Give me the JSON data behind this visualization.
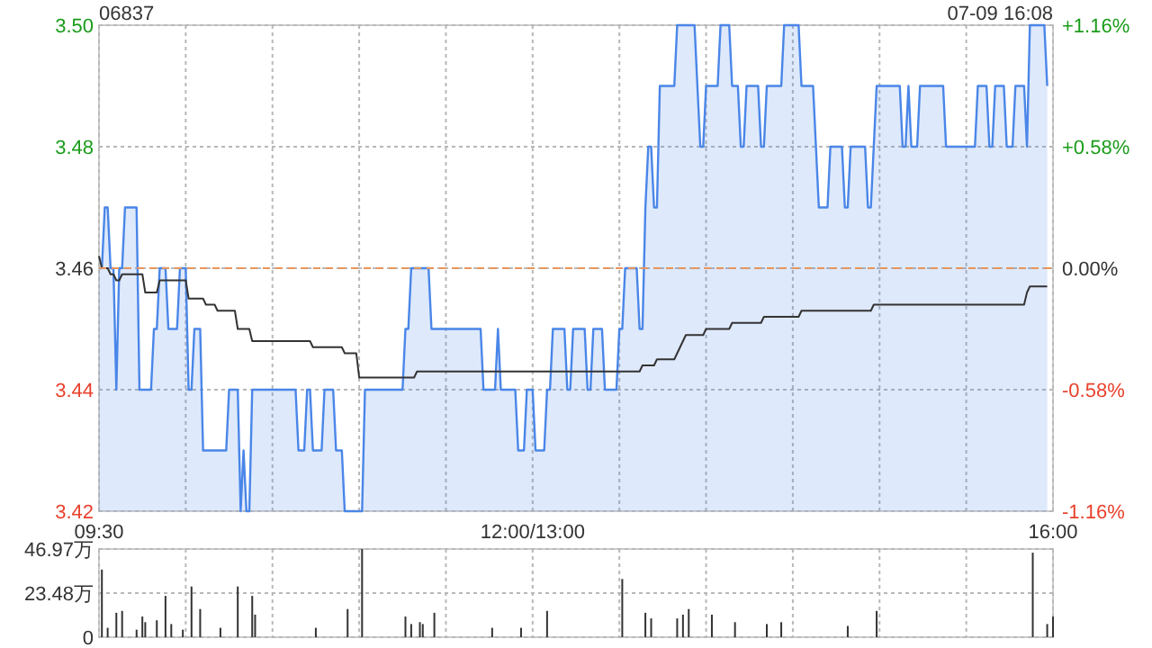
{
  "chart_data": [
    {
      "type": "line",
      "title": "06837",
      "subtitle": "07-09 16:08",
      "grid": true,
      "categories": [
        "09:30",
        null,
        null,
        null,
        null,
        null,
        null,
        null,
        null,
        null,
        null,
        null,
        null,
        null,
        null,
        null,
        null,
        null,
        null,
        null,
        null,
        null,
        null,
        null,
        null,
        null,
        null,
        null,
        null,
        null,
        null,
        null,
        null,
        null,
        null,
        null,
        null,
        null,
        null,
        null,
        null,
        null,
        null,
        null,
        null,
        null,
        null,
        null,
        null,
        null,
        null,
        null,
        null,
        null,
        null,
        null,
        null,
        null,
        null,
        null,
        null,
        null,
        null,
        null,
        null,
        null,
        null,
        null,
        null,
        null,
        null,
        null,
        null,
        null,
        null,
        null,
        null,
        null,
        null,
        null,
        null,
        null,
        null,
        null,
        null,
        null,
        null,
        null,
        null,
        null,
        null,
        null,
        null,
        null,
        null,
        null,
        null,
        null,
        null,
        null,
        null,
        null,
        null,
        null,
        null,
        null,
        null,
        null,
        null,
        null,
        null,
        null,
        null,
        null,
        null,
        null,
        null,
        null,
        null,
        null,
        null,
        null,
        null,
        null,
        null,
        null,
        null,
        null,
        null,
        null,
        null,
        null,
        null,
        null,
        null,
        null,
        null,
        null,
        null,
        null,
        null,
        null,
        null,
        null,
        null,
        null,
        null,
        null,
        null,
        null,
        "12:00/13:00",
        null,
        null,
        null,
        null,
        null,
        null,
        null,
        null,
        null,
        null,
        null,
        null,
        null,
        null,
        null,
        null,
        null,
        null,
        null,
        null,
        null,
        null,
        null,
        null,
        null,
        null,
        null,
        null,
        null,
        null,
        null,
        null,
        null,
        null,
        null,
        null,
        null,
        null,
        null,
        null,
        null,
        null,
        null,
        null,
        null,
        null,
        null,
        null,
        null,
        null,
        null,
        null,
        null,
        null,
        null,
        null,
        null,
        null,
        null,
        null,
        null,
        null,
        null,
        null,
        null,
        null,
        null,
        null,
        null,
        null,
        null,
        null,
        null,
        null,
        null,
        null,
        null,
        null,
        null,
        null,
        null,
        null,
        null,
        null,
        null,
        null,
        null,
        null,
        null,
        null,
        null,
        null,
        null,
        null,
        null,
        null,
        null,
        null,
        null,
        null,
        null,
        null,
        null,
        null,
        null,
        null,
        null,
        null,
        null,
        null,
        null,
        null,
        null,
        null,
        null,
        null,
        null,
        null,
        null,
        null,
        null,
        null,
        null,
        null,
        null,
        null,
        null,
        null,
        null,
        null,
        null,
        null,
        null,
        null,
        null,
        null,
        null,
        null,
        null,
        null,
        null,
        null,
        null,
        null,
        null,
        null,
        null,
        null,
        null,
        null,
        null,
        null,
        null,
        null,
        null,
        null,
        null,
        null,
        null,
        null,
        null,
        null,
        null,
        null,
        null,
        null,
        null,
        null,
        null,
        null,
        null,
        null,
        null,
        null,
        null,
        null,
        null,
        null,
        null,
        "16:00"
      ],
      "ylim": [
        3.42,
        3.5
      ],
      "yticks": [
        {
          "value": 3.42,
          "label": "3.42"
        },
        {
          "value": 3.44,
          "label": "3.44"
        },
        {
          "value": 3.46,
          "label": "3.46"
        },
        {
          "value": 3.48,
          "label": "3.48"
        },
        {
          "value": 3.5,
          "label": "3.50"
        }
      ],
      "y2lim": [
        -1.16,
        1.16
      ],
      "y2ticks": [
        {
          "value": -1.16,
          "label": "-1.16%"
        },
        {
          "value": -0.58,
          "label": "-0.58%"
        },
        {
          "value": 0,
          "label": "0.00%"
        },
        {
          "value": 0.58,
          "label": "+0.58%"
        },
        {
          "value": 1.16,
          "label": "+1.16%"
        }
      ],
      "ref_lines": [
        {
          "axis": "y",
          "value": 3.46,
          "color": "#e8955a",
          "line_style": "dashed"
        }
      ],
      "series": [
        {
          "type": "area",
          "color": "#4a86e8",
          "values": [
            3.46,
            3.46,
            3.47,
            3.47,
            3.46,
            3.46,
            3.44,
            3.46,
            3.46,
            3.47,
            3.47,
            3.47,
            3.47,
            3.47,
            3.44,
            3.44,
            3.44,
            3.44,
            3.44,
            3.45,
            3.45,
            3.46,
            3.46,
            3.46,
            3.45,
            3.45,
            3.45,
            3.45,
            3.46,
            3.46,
            3.46,
            3.44,
            3.44,
            3.45,
            3.45,
            3.45,
            3.43,
            3.43,
            3.43,
            3.43,
            3.43,
            3.43,
            3.43,
            3.43,
            3.43,
            3.44,
            3.44,
            3.44,
            3.44,
            3.42,
            3.43,
            3.42,
            3.42,
            3.44,
            3.44,
            3.44,
            3.44,
            3.44,
            3.44,
            3.44,
            3.44,
            3.44,
            3.44,
            3.44,
            3.44,
            3.44,
            3.44,
            3.44,
            3.44,
            3.43,
            3.43,
            3.43,
            3.44,
            3.44,
            3.43,
            3.43,
            3.43,
            3.43,
            3.44,
            3.44,
            3.44,
            3.44,
            3.43,
            3.43,
            3.43,
            3.42,
            3.42,
            3.42,
            3.42,
            3.42,
            3.42,
            3.42,
            3.44,
            3.44,
            3.44,
            3.44,
            3.44,
            3.44,
            3.44,
            3.44,
            3.44,
            3.44,
            3.44,
            3.44,
            3.44,
            3.44,
            3.45,
            3.45,
            3.46,
            3.46,
            3.46,
            3.46,
            3.46,
            3.46,
            3.46,
            3.45,
            3.45,
            3.45,
            3.45,
            3.45,
            3.45,
            3.45,
            3.45,
            3.45,
            3.45,
            3.45,
            3.45,
            3.45,
            3.45,
            3.45,
            3.45,
            3.45,
            3.45,
            3.44,
            3.44,
            3.44,
            3.44,
            3.44,
            3.45,
            3.44,
            3.44,
            3.44,
            3.44,
            3.44,
            3.44,
            3.43,
            3.43,
            3.43,
            3.44,
            3.44,
            3.44,
            3.43,
            3.43,
            3.43,
            3.43,
            3.44,
            3.44,
            3.45,
            3.45,
            3.45,
            3.45,
            3.45,
            3.44,
            3.44,
            3.45,
            3.45,
            3.45,
            3.45,
            3.45,
            3.44,
            3.44,
            3.45,
            3.45,
            3.45,
            3.45,
            3.44,
            3.44,
            3.44,
            3.44,
            3.44,
            3.45,
            3.45,
            3.46,
            3.46,
            3.46,
            3.46,
            3.46,
            3.45,
            3.45,
            3.47,
            3.48,
            3.48,
            3.47,
            3.47,
            3.49,
            3.49,
            3.49,
            3.49,
            3.49,
            3.49,
            3.5,
            3.5,
            3.5,
            3.5,
            3.5,
            3.5,
            3.5,
            3.49,
            3.48,
            3.48,
            3.49,
            3.49,
            3.49,
            3.49,
            3.49,
            3.5,
            3.5,
            3.5,
            3.5,
            3.49,
            3.49,
            3.49,
            3.48,
            3.48,
            3.49,
            3.49,
            3.49,
            3.49,
            3.49,
            3.48,
            3.48,
            3.49,
            3.49,
            3.49,
            3.49,
            3.49,
            3.49,
            3.5,
            3.5,
            3.5,
            3.5,
            3.5,
            3.5,
            3.49,
            3.49,
            3.49,
            3.49,
            3.49,
            3.48,
            3.47,
            3.47,
            3.47,
            3.47,
            3.48,
            3.48,
            3.48,
            3.48,
            3.48,
            3.47,
            3.47,
            3.48,
            3.48,
            3.48,
            3.48,
            3.48,
            3.48,
            3.47,
            3.47,
            3.48,
            3.49,
            3.49,
            3.49,
            3.49,
            3.49,
            3.49,
            3.49,
            3.49,
            3.49,
            3.48,
            3.48,
            3.49,
            3.48,
            3.48,
            3.48,
            3.49,
            3.49,
            3.49,
            3.49,
            3.49,
            3.49,
            3.49,
            3.49,
            3.49,
            3.48,
            3.48,
            3.48,
            3.48,
            3.48,
            3.48,
            3.48,
            3.48,
            3.48,
            3.48,
            3.48,
            3.49,
            3.49,
            3.49,
            3.49,
            3.48,
            3.48,
            3.49,
            3.49,
            3.49,
            3.49,
            3.48,
            3.48,
            3.48,
            3.49,
            3.49,
            3.49,
            3.49,
            3.48,
            3.5,
            3.5,
            3.5,
            3.5,
            3.5,
            3.5,
            3.49,
            null,
            null
          ]
        },
        {
          "type": "line",
          "color": "#333333",
          "values": [
            3.462,
            3.46,
            3.46,
            3.46,
            3.459,
            3.459,
            3.458,
            3.458,
            3.459,
            3.459,
            3.459,
            3.459,
            3.459,
            3.459,
            3.459,
            3.459,
            3.456,
            3.456,
            3.456,
            3.456,
            3.456,
            3.458,
            3.458,
            3.458,
            3.458,
            3.458,
            3.458,
            3.458,
            3.458,
            3.458,
            3.458,
            3.455,
            3.455,
            3.455,
            3.455,
            3.455,
            3.455,
            3.454,
            3.454,
            3.454,
            3.454,
            3.453,
            3.453,
            3.453,
            3.453,
            3.453,
            3.453,
            3.453,
            3.45,
            3.45,
            3.45,
            3.45,
            3.45,
            3.448,
            3.448,
            3.448,
            3.448,
            3.448,
            3.448,
            3.448,
            3.448,
            3.448,
            3.448,
            3.448,
            3.448,
            3.448,
            3.448,
            3.448,
            3.448,
            3.448,
            3.448,
            3.448,
            3.448,
            3.448,
            3.447,
            3.447,
            3.447,
            3.447,
            3.447,
            3.447,
            3.447,
            3.447,
            3.447,
            3.447,
            3.447,
            3.446,
            3.446,
            3.446,
            3.446,
            3.446,
            3.442,
            3.442,
            3.442,
            3.442,
            3.442,
            3.442,
            3.442,
            3.442,
            3.442,
            3.442,
            3.442,
            3.442,
            3.442,
            3.442,
            3.442,
            3.442,
            3.442,
            3.442,
            3.442,
            3.442,
            3.443,
            3.443,
            3.443,
            3.443,
            3.443,
            3.443,
            3.443,
            3.443,
            3.443,
            3.443,
            3.443,
            3.443,
            3.443,
            3.443,
            3.443,
            3.443,
            3.443,
            3.443,
            3.443,
            3.443,
            3.443,
            3.443,
            3.443,
            3.443,
            3.443,
            3.443,
            3.443,
            3.443,
            3.443,
            3.443,
            3.443,
            3.443,
            3.443,
            3.443,
            3.443,
            3.443,
            3.443,
            3.443,
            3.443,
            3.443,
            3.443,
            3.443,
            3.443,
            3.443,
            3.443,
            3.443,
            3.443,
            3.443,
            3.443,
            3.443,
            3.443,
            3.443,
            3.443,
            3.443,
            3.443,
            3.443,
            3.443,
            3.443,
            3.443,
            3.443,
            3.443,
            3.443,
            3.443,
            3.443,
            3.443,
            3.443,
            3.443,
            3.443,
            3.443,
            3.443,
            3.443,
            3.443,
            3.443,
            3.443,
            3.443,
            3.443,
            3.443,
            3.443,
            3.444,
            3.444,
            3.444,
            3.444,
            3.444,
            3.445,
            3.445,
            3.445,
            3.445,
            3.445,
            3.445,
            3.445,
            3.446,
            3.447,
            3.448,
            3.449,
            3.449,
            3.449,
            3.449,
            3.449,
            3.449,
            3.449,
            3.45,
            3.45,
            3.45,
            3.45,
            3.45,
            3.45,
            3.45,
            3.45,
            3.45,
            3.451,
            3.451,
            3.451,
            3.451,
            3.451,
            3.451,
            3.451,
            3.451,
            3.451,
            3.451,
            3.451,
            3.452,
            3.452,
            3.452,
            3.452,
            3.452,
            3.452,
            3.452,
            3.452,
            3.452,
            3.452,
            3.452,
            3.452,
            3.452,
            3.453,
            3.453,
            3.453,
            3.453,
            3.453,
            3.453,
            3.453,
            3.453,
            3.453,
            3.453,
            3.453,
            3.453,
            3.453,
            3.453,
            3.453,
            3.453,
            3.453,
            3.453,
            3.453,
            3.453,
            3.453,
            3.453,
            3.453,
            3.453,
            3.453,
            3.454,
            3.454,
            3.454,
            3.454,
            3.454,
            3.454,
            3.454,
            3.454,
            3.454,
            3.454,
            3.454,
            3.454,
            3.454,
            3.454,
            3.454,
            3.454,
            3.454,
            3.454,
            3.454,
            3.454,
            3.454,
            3.454,
            3.454,
            3.454,
            3.454,
            3.454,
            3.454,
            3.454,
            3.454,
            3.454,
            3.454,
            3.454,
            3.454,
            3.454,
            3.454,
            3.454,
            3.454,
            3.454,
            3.454,
            3.454,
            3.454,
            3.454,
            3.454,
            3.454,
            3.454,
            3.454,
            3.454,
            3.454,
            3.454,
            3.454,
            3.454,
            3.454,
            3.454,
            3.456,
            3.457,
            3.457,
            3.457,
            3.457,
            3.457,
            3.457,
            3.457,
            null,
            null
          ]
        }
      ]
    },
    {
      "type": "bar",
      "grid": true,
      "tick_labels": "y",
      "color": "#333333",
      "categories": [
        null,
        null,
        null,
        null,
        null,
        null,
        null,
        null,
        null,
        null,
        null,
        null,
        null,
        null,
        null,
        null,
        null,
        null,
        null,
        null,
        null,
        null,
        null,
        null,
        null,
        null,
        null,
        null,
        null,
        null,
        null,
        null,
        null,
        null,
        null,
        null,
        null,
        null,
        null,
        null,
        null,
        null,
        null,
        null,
        null,
        null,
        null,
        null,
        null,
        null,
        null,
        null,
        null,
        null,
        null,
        null,
        null,
        null,
        null,
        null,
        null,
        null,
        null,
        null,
        null,
        null,
        null,
        null,
        null,
        null,
        null,
        null,
        null,
        null,
        null,
        null,
        null,
        null,
        null,
        null,
        null,
        null,
        null,
        null,
        null,
        null,
        null,
        null,
        null,
        null,
        null,
        null,
        null,
        null,
        null,
        null,
        null,
        null,
        null,
        null,
        null,
        null,
        null,
        null,
        null,
        null,
        null,
        null,
        null,
        null,
        null,
        null,
        null,
        null,
        null,
        null,
        null,
        null,
        null,
        null,
        null,
        null,
        null,
        null,
        null,
        null,
        null,
        null,
        null,
        null,
        null,
        null,
        null,
        null,
        null,
        null,
        null,
        null,
        null,
        null,
        null,
        null,
        null,
        null,
        null,
        null,
        null,
        null,
        null,
        null,
        null,
        null,
        null,
        null,
        null,
        null,
        null,
        null,
        null,
        null,
        null,
        null,
        null,
        null,
        null,
        null,
        null,
        null,
        null,
        null,
        null,
        null,
        null,
        null,
        null,
        null,
        null,
        null,
        null,
        null,
        null,
        null,
        null,
        null,
        null,
        null,
        null,
        null,
        null,
        null,
        null,
        null,
        null,
        null,
        null,
        null,
        null,
        null,
        null,
        null,
        null,
        null,
        null,
        null,
        null,
        null,
        null,
        null,
        null,
        null,
        null,
        null,
        null,
        null,
        null,
        null,
        null,
        null,
        null,
        null,
        null,
        null,
        null,
        null,
        null,
        null,
        null,
        null,
        null,
        null,
        null,
        null,
        null,
        null,
        null,
        null,
        null,
        null,
        null,
        null,
        null,
        null,
        null,
        null,
        null,
        null,
        null,
        null,
        null,
        null,
        null,
        null,
        null,
        null,
        null,
        null,
        null,
        null,
        null,
        null,
        null,
        null,
        null,
        null,
        null,
        null,
        null,
        null,
        null,
        null,
        null,
        null,
        null,
        null,
        null,
        null,
        null,
        null,
        null,
        null,
        null,
        null,
        null,
        null,
        null,
        null,
        null,
        null,
        null,
        null,
        null,
        null,
        null,
        null,
        null,
        null,
        null,
        null,
        null,
        null,
        null,
        null,
        null,
        null,
        null,
        null,
        null,
        null,
        null,
        null,
        null,
        null,
        null,
        null,
        null,
        null,
        null,
        null,
        null,
        null,
        null,
        null,
        null,
        null,
        null,
        null,
        null,
        null,
        null,
        null,
        null
      ],
      "ylim": [
        0,
        46.97
      ],
      "yticks": [
        {
          "value": 0,
          "label": "0"
        },
        {
          "value": 23.48,
          "label": "23.48万"
        },
        {
          "value": 46.97,
          "label": "46.97万"
        }
      ],
      "values": [
        null,
        36,
        null,
        5,
        null,
        null,
        13,
        null,
        14,
        null,
        null,
        null,
        null,
        4,
        null,
        11,
        8,
        null,
        null,
        null,
        9,
        null,
        null,
        22,
        null,
        7,
        null,
        null,
        null,
        4,
        null,
        null,
        27,
        null,
        null,
        15,
        null,
        null,
        null,
        null,
        null,
        null,
        5,
        null,
        null,
        null,
        null,
        null,
        27,
        null,
        null,
        null,
        null,
        22,
        12,
        null,
        null,
        null,
        null,
        null,
        null,
        null,
        null,
        null,
        null,
        null,
        null,
        null,
        null,
        null,
        null,
        null,
        null,
        null,
        null,
        5,
        null,
        null,
        null,
        null,
        null,
        null,
        null,
        null,
        null,
        null,
        15,
        null,
        null,
        null,
        null,
        46.97,
        null,
        null,
        null,
        null,
        null,
        null,
        null,
        null,
        null,
        null,
        null,
        null,
        null,
        null,
        11,
        null,
        7,
        null,
        null,
        8,
        7,
        null,
        null,
        null,
        13,
        null,
        null,
        null,
        null,
        null,
        null,
        null,
        null,
        null,
        null,
        null,
        null,
        null,
        null,
        null,
        null,
        null,
        null,
        null,
        5,
        null,
        null,
        null,
        null,
        null,
        null,
        null,
        null,
        null,
        5,
        null,
        null,
        null,
        null,
        null,
        null,
        null,
        null,
        14,
        null,
        null,
        null,
        null,
        null,
        null,
        null,
        null,
        null,
        null,
        null,
        null,
        null,
        null,
        null,
        null,
        null,
        null,
        null,
        null,
        null,
        null,
        null,
        null,
        null,
        31,
        null,
        null,
        null,
        null,
        null,
        null,
        null,
        13,
        null,
        10,
        null,
        null,
        null,
        null,
        null,
        null,
        null,
        null,
        10,
        null,
        12,
        null,
        15,
        null,
        null,
        null,
        null,
        null,
        null,
        null,
        12,
        null,
        null,
        null,
        null,
        null,
        null,
        null,
        8,
        null,
        null,
        null,
        null,
        null,
        null,
        null,
        null,
        null,
        null,
        7,
        null,
        null,
        null,
        null,
        8,
        null,
        null,
        null,
        null,
        null,
        null,
        null,
        null,
        null,
        null,
        null,
        null,
        null,
        null,
        null,
        null,
        null,
        null,
        null,
        null,
        null,
        null,
        6,
        null,
        null,
        null,
        null,
        null,
        null,
        null,
        null,
        null,
        14,
        null,
        null,
        null,
        null,
        null,
        null,
        null,
        null,
        null,
        null,
        null,
        null,
        null,
        null,
        null,
        null,
        null,
        null,
        null,
        null,
        null,
        null,
        null,
        null,
        null,
        null,
        null,
        null,
        null,
        null,
        null,
        null,
        null,
        null,
        null,
        null,
        null,
        null,
        null,
        null,
        null,
        null,
        null,
        null,
        null,
        null,
        null,
        null,
        null,
        null,
        null,
        null,
        null,
        45,
        null,
        null,
        null,
        null,
        7,
        null,
        11
      ]
    }
  ]
}
